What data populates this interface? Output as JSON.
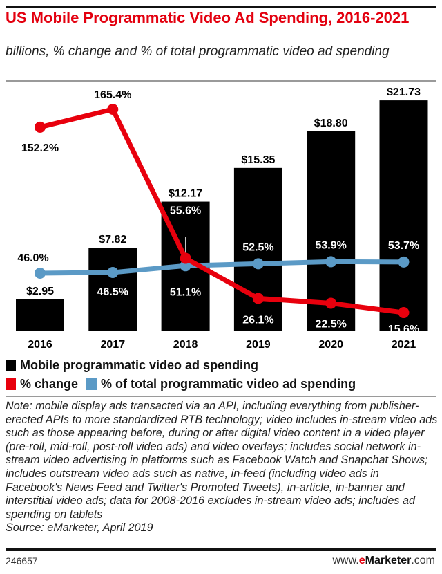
{
  "title": "US Mobile Programmatic Video Ad Spending, 2016-2021",
  "subtitle": "billions, % change and % of total programmatic video ad spending",
  "chart_data": {
    "type": "bar",
    "title": "US Mobile Programmatic Video Ad Spending, 2016-2021",
    "subtitle": "billions, % change and % of total programmatic video ad spending",
    "categories": [
      "2016",
      "2017",
      "2018",
      "2019",
      "2020",
      "2021"
    ],
    "series": [
      {
        "name": "Mobile programmatic video ad spending",
        "type": "bar",
        "color": "#000000",
        "values": [
          2.95,
          7.82,
          12.17,
          15.35,
          18.8,
          21.73
        ],
        "labels": [
          "$2.95",
          "$7.82",
          "$12.17",
          "$15.35",
          "$18.80",
          "$21.73"
        ]
      },
      {
        "name": "% change",
        "type": "line",
        "color": "#e8000d",
        "values": [
          152.2,
          165.4,
          55.6,
          26.1,
          22.5,
          15.6
        ],
        "labels": [
          "152.2%",
          "165.4%",
          "55.6%",
          "26.1%",
          "22.5%",
          "15.6%"
        ]
      },
      {
        "name": "% of total programmatic video ad spending",
        "type": "line",
        "color": "#5b9ac6",
        "values": [
          46.0,
          46.5,
          51.1,
          52.5,
          53.9,
          53.7
        ],
        "labels": [
          "46.0%",
          "46.5%",
          "51.1%",
          "52.5%",
          "53.9%",
          "53.7%"
        ]
      }
    ],
    "legend": "bottom",
    "grid": false
  },
  "legend": {
    "bar": "Mobile programmatic video ad spending",
    "change": "% change",
    "share": "% of total programmatic video ad spending"
  },
  "note": "Note: mobile display ads transacted via an API, including everything from publisher-erected APIs to more standardized RTB technology; video includes in-stream video ads such as those appearing before, during or after digital video content in a video player (pre-roll, mid-roll, post-roll video ads) and video overlays; includes social network in-stream video advertising in platforms such as Facebook Watch and Snapchat Shows; includes outstream video ads such as native, in-feed (including video ads in Facebook's News Feed and Twitter's Promoted Tweets), in-article, in-banner and interstitial video ads; data for 2008-2016 excludes in-stream video ads; includes ad spending on tablets",
  "source": "Source: eMarketer, April 2019",
  "chart_id": "246657",
  "brand": {
    "pre": "www.",
    "e": "e",
    "mid": "Marketer",
    ".com": ".com"
  }
}
